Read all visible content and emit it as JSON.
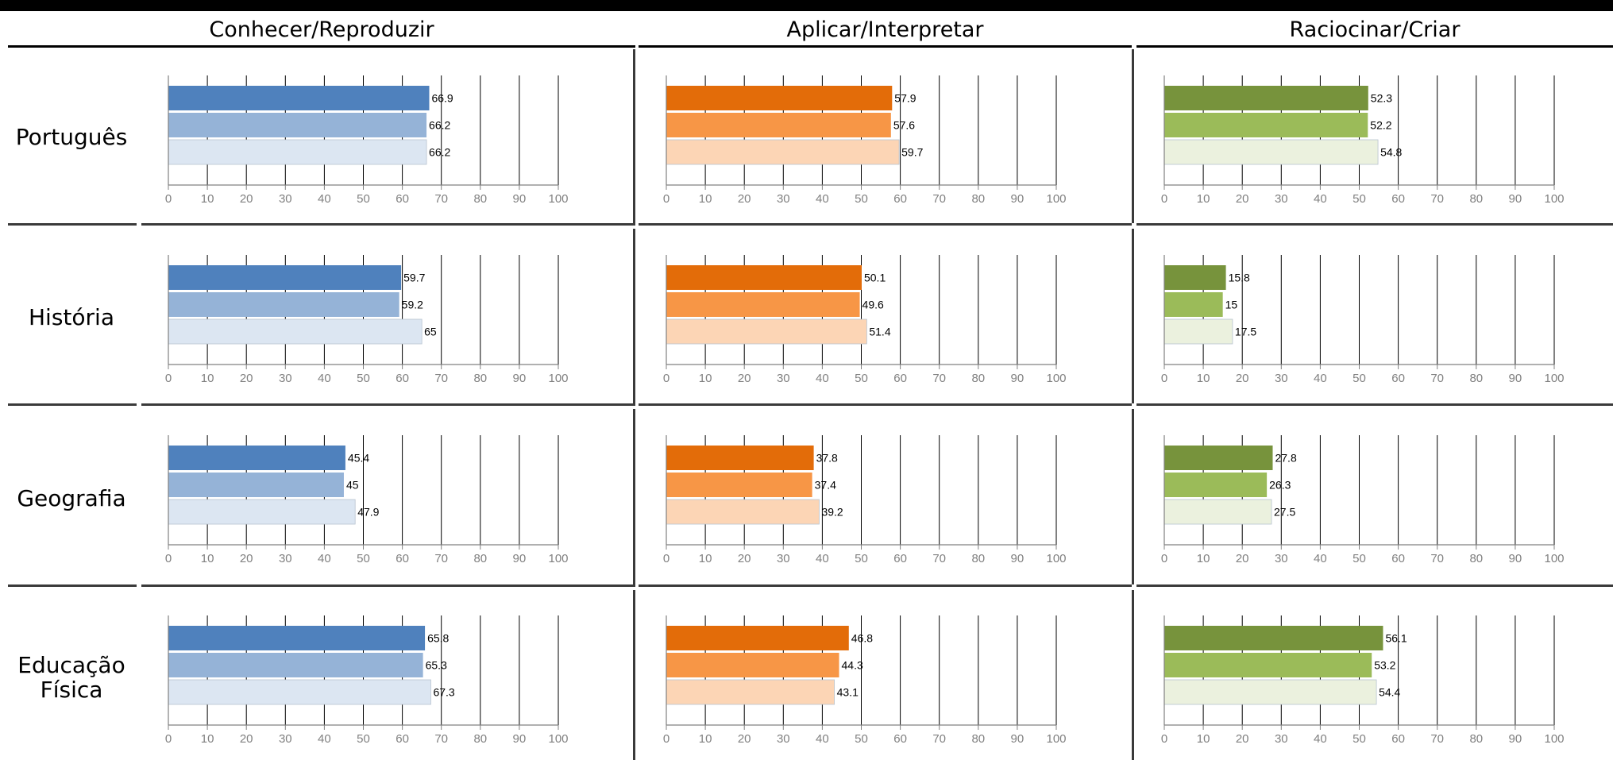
{
  "columns": [
    {
      "title": "Conhecer/Reproduzir",
      "palette": [
        "#4f81bd",
        "#95b3d7",
        "#dce6f2"
      ]
    },
    {
      "title": "Aplicar/Interpretar",
      "palette": [
        "#e36c09",
        "#f79646",
        "#fcd5b5"
      ]
    },
    {
      "title": "Raciocinar/Criar",
      "palette": [
        "#77933c",
        "#9bbb59",
        "#ebf1de"
      ]
    }
  ],
  "rows": [
    {
      "label_line1": "Português",
      "label_line2": ""
    },
    {
      "label_line1": "História",
      "label_line2": ""
    },
    {
      "label_line1": "Geografia",
      "label_line2": ""
    },
    {
      "label_line1": "Educação",
      "label_line2": "Física"
    }
  ],
  "chart_data": {
    "type": "bar",
    "orientation": "horizontal",
    "xlim": [
      0,
      100
    ],
    "ticks": [
      0,
      10,
      20,
      30,
      40,
      50,
      60,
      70,
      80,
      90,
      100
    ],
    "values": [
      [
        [
          66.9,
          66.2,
          66.2
        ],
        [
          57.9,
          57.6,
          59.7
        ],
        [
          52.3,
          52.2,
          54.8
        ]
      ],
      [
        [
          59.7,
          59.2,
          65
        ],
        [
          50.1,
          49.6,
          51.4
        ],
        [
          15.8,
          15,
          17.5
        ]
      ],
      [
        [
          45.4,
          45,
          47.9
        ],
        [
          37.8,
          37.4,
          39.2
        ],
        [
          27.8,
          26.3,
          27.5
        ]
      ],
      [
        [
          65.8,
          65.3,
          67.3
        ],
        [
          46.8,
          44.3,
          43.1
        ],
        [
          56.1,
          53.2,
          54.4
        ]
      ]
    ]
  },
  "colors": {
    "axis": "#808080",
    "grid": "#000000",
    "tick_label": "#808080",
    "value_label": "#000000"
  }
}
